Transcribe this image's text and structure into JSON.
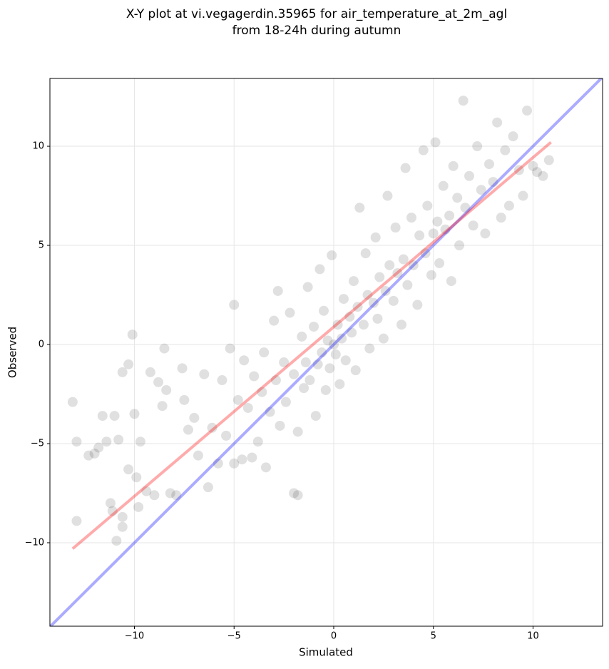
{
  "chart_data": {
    "type": "scatter",
    "title": [
      "X-Y plot at vi.vegagerdin.35965 for air_temperature_at_2m_agl",
      "from 18-24h during autumn"
    ],
    "xlabel": "Simulated",
    "ylabel": "Observed",
    "xlim": [
      -14.24,
      13.49
    ],
    "ylim": [
      -14.21,
      13.42
    ],
    "xticks": [
      {
        "value": -10,
        "label": "−10"
      },
      {
        "value": -5,
        "label": "−5"
      },
      0,
      5,
      10
    ],
    "yticks": [
      {
        "value": -10,
        "label": "−10"
      },
      {
        "value": -5,
        "label": "−5"
      },
      0,
      5,
      10
    ],
    "grid": true,
    "series": [
      {
        "color": "#000000",
        "opacity": 0.12,
        "x": [
          -13.1,
          -12.9,
          -12.9,
          -12.3,
          -12.0,
          -11.8,
          -11.6,
          -11.4,
          -11.2,
          -11.1,
          -11.0,
          -10.9,
          -10.8,
          -10.6,
          -10.6,
          -10.6,
          -10.3,
          -10.3,
          -10.1,
          -10.0,
          -9.9,
          -9.8,
          -9.7,
          -9.4,
          -9.2,
          -9.0,
          -8.8,
          -8.6,
          -8.5,
          -8.4,
          -8.2,
          -7.9,
          -7.6,
          -7.5,
          -7.3,
          -7.0,
          -6.8,
          -6.5,
          -6.3,
          -6.1,
          -5.8,
          -5.6,
          -5.4,
          -5.2,
          -5.0,
          -5.0,
          -4.8,
          -4.6,
          -4.5,
          -4.3,
          -4.1,
          -4.0,
          -3.8,
          -3.6,
          -3.5,
          -3.4,
          -3.2,
          -3.0,
          -2.9,
          -2.8,
          -2.7,
          -2.5,
          -2.4,
          -2.2,
          -2.0,
          -2.0,
          -1.8,
          -1.8,
          -1.6,
          -1.5,
          -1.4,
          -1.3,
          -1.2,
          -1.0,
          -0.9,
          -0.8,
          -0.7,
          -0.6,
          -0.5,
          -0.4,
          -0.3,
          -0.2,
          -0.1,
          0.0,
          0.1,
          0.2,
          0.3,
          0.4,
          0.5,
          0.6,
          0.8,
          0.9,
          1.0,
          1.1,
          1.2,
          1.3,
          1.5,
          1.6,
          1.7,
          1.8,
          2.0,
          2.1,
          2.2,
          2.3,
          2.5,
          2.6,
          2.7,
          2.8,
          3.0,
          3.1,
          3.2,
          3.4,
          3.5,
          3.6,
          3.7,
          3.9,
          4.0,
          4.2,
          4.3,
          4.5,
          4.6,
          4.7,
          4.9,
          5.0,
          5.1,
          5.2,
          5.3,
          5.5,
          5.6,
          5.8,
          5.9,
          6.0,
          6.2,
          6.3,
          6.5,
          6.6,
          6.8,
          7.0,
          7.2,
          7.4,
          7.6,
          7.8,
          8.0,
          8.2,
          8.4,
          8.6,
          8.8,
          9.0,
          9.3,
          9.5,
          9.7,
          10.0,
          10.2,
          10.5,
          10.8
        ],
        "y": [
          -2.9,
          -4.9,
          -8.9,
          -5.6,
          -5.5,
          -5.2,
          -3.6,
          -4.9,
          -8.0,
          -8.4,
          -3.6,
          -9.9,
          -4.8,
          -8.7,
          -1.4,
          -9.2,
          -1.0,
          -6.3,
          0.5,
          -3.5,
          -6.7,
          -8.2,
          -4.9,
          -7.4,
          -1.4,
          -7.6,
          -1.9,
          -3.1,
          -0.2,
          -2.3,
          -7.5,
          -7.6,
          -1.2,
          -2.8,
          -4.3,
          -3.7,
          -5.6,
          -1.5,
          -7.2,
          -4.2,
          -6.0,
          -1.8,
          -4.6,
          -0.2,
          -6.0,
          2.0,
          -2.8,
          -5.8,
          -0.8,
          -3.2,
          -5.7,
          -1.6,
          -4.9,
          -2.4,
          -0.4,
          -6.2,
          -3.4,
          1.2,
          -1.8,
          2.7,
          -4.1,
          -0.9,
          -2.9,
          1.6,
          -7.5,
          -1.5,
          -4.4,
          -7.6,
          0.4,
          -2.2,
          -0.9,
          2.9,
          -1.8,
          0.9,
          -3.6,
          -1.0,
          3.8,
          -0.4,
          1.7,
          -2.3,
          0.2,
          -1.2,
          4.5,
          0.0,
          -0.5,
          1.0,
          -2.0,
          0.3,
          2.3,
          -0.8,
          1.4,
          0.6,
          3.2,
          -1.3,
          1.9,
          6.9,
          1.0,
          4.6,
          2.5,
          -0.2,
          2.1,
          5.4,
          1.3,
          3.4,
          0.3,
          2.7,
          7.5,
          4.0,
          2.2,
          5.9,
          3.6,
          1.0,
          4.3,
          8.9,
          3.0,
          6.4,
          4.0,
          2.0,
          5.5,
          9.8,
          4.6,
          7.0,
          3.5,
          5.6,
          10.2,
          6.2,
          4.1,
          8.0,
          5.8,
          6.5,
          3.2,
          9.0,
          7.4,
          5.0,
          12.3,
          6.9,
          8.5,
          6.0,
          10.0,
          7.8,
          5.6,
          9.1,
          8.2,
          11.2,
          6.4,
          9.8,
          7.0,
          10.5,
          8.8,
          7.5,
          11.8,
          9.0,
          8.7,
          8.5,
          9.3
        ]
      }
    ],
    "lines": [
      {
        "color": "#0000ff",
        "x": [
          -14.24,
          13.49
        ],
        "y": [
          -14.24,
          13.49
        ]
      },
      {
        "color": "#ff0000",
        "x": [
          -13.1,
          10.9
        ],
        "y": [
          -10.3,
          10.2
        ]
      }
    ]
  }
}
